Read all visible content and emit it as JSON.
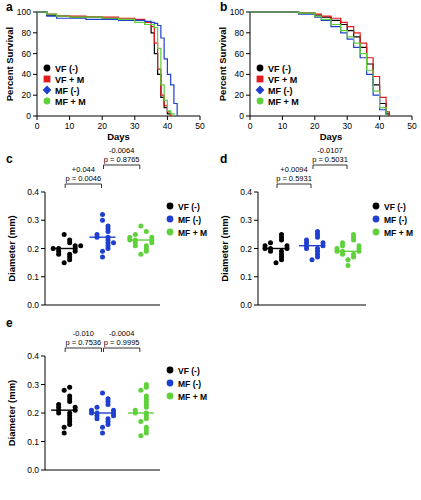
{
  "chart_data": [
    {
      "panel": "a",
      "type": "line",
      "line_style": "step",
      "x_label": "Days",
      "y_label": "Percent Survival",
      "xlim": [
        0,
        50
      ],
      "xticks": [
        0,
        10,
        20,
        30,
        40,
        50
      ],
      "ylim": [
        0,
        100
      ],
      "yticks": [
        0,
        20,
        40,
        60,
        80,
        100
      ],
      "legend": "left",
      "x": [
        0,
        3,
        6,
        10,
        15,
        20,
        25,
        30,
        33,
        35,
        36,
        37,
        38,
        39,
        40,
        41,
        42,
        43,
        44
      ],
      "series": [
        {
          "name": "VF (-)",
          "color": "#000000",
          "marker": "circle",
          "values": [
            100,
            97,
            96,
            95,
            95,
            94,
            93,
            92,
            88,
            80,
            60,
            40,
            18,
            8,
            2,
            0,
            null,
            null,
            null
          ]
        },
        {
          "name": "VF + M",
          "color": "#e41a1c",
          "marker": "square",
          "values": [
            100,
            98,
            96,
            96,
            95,
            95,
            94,
            93,
            90,
            86,
            70,
            45,
            20,
            10,
            4,
            0,
            null,
            null,
            null
          ]
        },
        {
          "name": "MF (-)",
          "color": "#1f3fd1",
          "marker": "diamond",
          "values": [
            100,
            96,
            94,
            94,
            93,
            93,
            92,
            92,
            91,
            90,
            89,
            87,
            75,
            55,
            40,
            30,
            12,
            0,
            null
          ]
        },
        {
          "name": "MF + M",
          "color": "#5fd13a",
          "marker": "circle",
          "values": [
            100,
            98,
            96,
            95,
            95,
            94,
            93,
            90,
            88,
            88,
            85,
            65,
            30,
            15,
            5,
            2,
            0,
            null,
            null
          ]
        }
      ]
    },
    {
      "panel": "b",
      "type": "line",
      "line_style": "step",
      "x_label": "Days",
      "y_label": "Percent Survival",
      "xlim": [
        0,
        50
      ],
      "xticks": [
        0,
        10,
        20,
        30,
        40,
        50
      ],
      "ylim": [
        0,
        100
      ],
      "yticks": [
        0,
        20,
        40,
        60,
        80,
        100
      ],
      "legend": "left",
      "x": [
        0,
        10,
        15,
        20,
        22,
        25,
        28,
        30,
        32,
        34,
        36,
        38,
        40,
        42,
        43,
        44
      ],
      "series": [
        {
          "name": "VF (-)",
          "color": "#000000",
          "marker": "circle",
          "values": [
            100,
            100,
            99,
            97,
            95,
            92,
            88,
            82,
            76,
            66,
            50,
            30,
            12,
            2,
            0,
            null
          ]
        },
        {
          "name": "VF + M",
          "color": "#e41a1c",
          "marker": "square",
          "values": [
            100,
            100,
            99,
            98,
            96,
            94,
            90,
            86,
            80,
            70,
            56,
            38,
            18,
            4,
            0,
            null
          ]
        },
        {
          "name": "MF (-)",
          "color": "#1f3fd1",
          "marker": "diamond",
          "values": [
            100,
            100,
            98,
            95,
            92,
            86,
            80,
            74,
            66,
            56,
            40,
            20,
            6,
            0,
            null,
            null
          ]
        },
        {
          "name": "MF + M",
          "color": "#5fd13a",
          "marker": "circle",
          "values": [
            100,
            100,
            99,
            96,
            93,
            88,
            82,
            76,
            70,
            60,
            44,
            24,
            8,
            0,
            null,
            null
          ]
        }
      ]
    },
    {
      "panel": "c",
      "type": "dot",
      "y_label": "Diameter (mm)",
      "ylim": [
        0,
        0.4
      ],
      "yticks": [
        {
          "value": 0,
          "label": "0.0"
        },
        0.1,
        0.2,
        0.3,
        0.4
      ],
      "legend": "right",
      "series": [
        {
          "name": "VF (-)",
          "color": "#000000",
          "marker": "circle",
          "median": 0.2,
          "values": [
            0.15,
            0.16,
            0.17,
            0.18,
            0.18,
            0.19,
            0.19,
            0.2,
            0.2,
            0.2,
            0.21,
            0.22,
            0.23,
            0.25,
            0.21
          ]
        },
        {
          "name": "MF (-)",
          "color": "#1f3fd1",
          "marker": "circle",
          "median": 0.24,
          "values": [
            0.17,
            0.19,
            0.2,
            0.21,
            0.22,
            0.23,
            0.24,
            0.24,
            0.25,
            0.26,
            0.27,
            0.28,
            0.3,
            0.32,
            0.22
          ]
        },
        {
          "name": "MF + M",
          "color": "#5fd13a",
          "marker": "circle",
          "median": 0.23,
          "values": [
            0.18,
            0.19,
            0.2,
            0.21,
            0.21,
            0.22,
            0.22,
            0.23,
            0.23,
            0.23,
            0.24,
            0.24,
            0.25,
            0.26,
            0.28
          ]
        }
      ],
      "comparisons": [
        {
          "groups": [
            "VF (-)",
            "MF (-)"
          ],
          "difference": "+0.044",
          "p_label": "p = 0.0046"
        },
        {
          "groups": [
            "MF (-)",
            "MF + M"
          ],
          "difference": "-0.0064",
          "p_label": "p = 0.8765"
        }
      ]
    },
    {
      "panel": "d",
      "type": "dot",
      "y_label": "Diameter (mm)",
      "ylim": [
        0,
        0.4
      ],
      "yticks": [
        {
          "value": 0,
          "label": "0.0"
        },
        0.1,
        0.2,
        0.3,
        0.4
      ],
      "legend": "right",
      "series": [
        {
          "name": "VF (-)",
          "color": "#000000",
          "marker": "circle",
          "median": 0.2,
          "values": [
            0.15,
            0.16,
            0.17,
            0.18,
            0.19,
            0.19,
            0.2,
            0.2,
            0.2,
            0.21,
            0.21,
            0.22,
            0.23,
            0.24,
            0.25
          ]
        },
        {
          "name": "MF (-)",
          "color": "#1f3fd1",
          "marker": "circle",
          "median": 0.21,
          "values": [
            0.16,
            0.17,
            0.18,
            0.19,
            0.2,
            0.2,
            0.21,
            0.21,
            0.22,
            0.22,
            0.23,
            0.24,
            0.25,
            0.26
          ]
        },
        {
          "name": "MF + M",
          "color": "#5fd13a",
          "marker": "circle",
          "median": 0.19,
          "values": [
            0.14,
            0.16,
            0.17,
            0.18,
            0.18,
            0.19,
            0.19,
            0.19,
            0.2,
            0.2,
            0.21,
            0.21,
            0.22,
            0.23,
            0.24,
            0.25
          ]
        }
      ],
      "comparisons": [
        {
          "groups": [
            "VF (-)",
            "MF (-)"
          ],
          "difference": "+0.0094",
          "p_label": "p = 0.5931"
        },
        {
          "groups": [
            "MF (-)",
            "MF + M"
          ],
          "difference": "-0.0107",
          "p_label": "p = 0.5031"
        }
      ]
    },
    {
      "panel": "e",
      "type": "dot",
      "y_label": "Diameter (mm)",
      "ylim": [
        0,
        0.4
      ],
      "yticks": [
        {
          "value": 0,
          "label": "0.0"
        },
        0.1,
        0.2,
        0.3,
        0.4
      ],
      "legend": "right",
      "series": [
        {
          "name": "VF (-)",
          "color": "#000000",
          "marker": "circle",
          "median": 0.21,
          "values": [
            0.13,
            0.15,
            0.16,
            0.17,
            0.18,
            0.19,
            0.2,
            0.2,
            0.21,
            0.21,
            0.22,
            0.22,
            0.23,
            0.24,
            0.25,
            0.26,
            0.28,
            0.29
          ]
        },
        {
          "name": "MF (-)",
          "color": "#1f3fd1",
          "marker": "circle",
          "median": 0.2,
          "values": [
            0.13,
            0.15,
            0.16,
            0.17,
            0.18,
            0.18,
            0.19,
            0.19,
            0.2,
            0.2,
            0.2,
            0.21,
            0.21,
            0.22,
            0.23,
            0.24,
            0.25,
            0.27
          ]
        },
        {
          "name": "MF + M",
          "color": "#5fd13a",
          "marker": "circle",
          "median": 0.2,
          "values": [
            0.12,
            0.13,
            0.14,
            0.15,
            0.17,
            0.18,
            0.19,
            0.2,
            0.2,
            0.21,
            0.22,
            0.23,
            0.24,
            0.25,
            0.26,
            0.28,
            0.29,
            0.3
          ]
        }
      ],
      "comparisons": [
        {
          "groups": [
            "VF (-)",
            "MF (-)"
          ],
          "difference": "-0.010",
          "p_label": "p = 0.7536"
        },
        {
          "groups": [
            "MF (-)",
            "MF + M"
          ],
          "difference": "-0.0004",
          "p_label": "p = 0.9995"
        }
      ]
    }
  ]
}
